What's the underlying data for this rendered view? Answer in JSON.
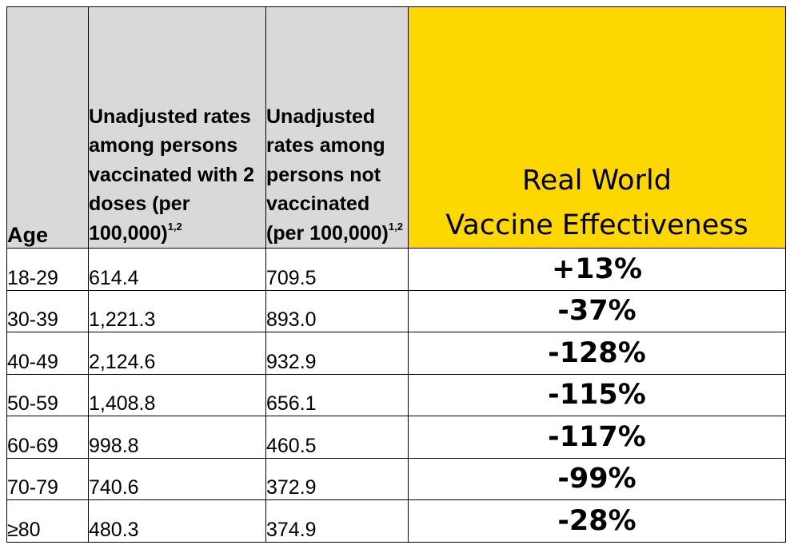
{
  "header": {
    "age": "Age",
    "vaccinated": "Unadjusted rates among persons vaccinated with 2 doses (per 100,000)",
    "vaccinated_sup": "1,2",
    "unvaccinated": "Unadjusted rates among persons not vaccinated (per 100,000)",
    "unvaccinated_sup": "1,2",
    "effectiveness_line1": "Real World",
    "effectiveness_line2": "Vaccine Effectiveness"
  },
  "rows": [
    {
      "age": "18-29",
      "vaccinated": "614.4",
      "unvaccinated": "709.5",
      "effectiveness": "+13%"
    },
    {
      "age": "30-39",
      "vaccinated": "1,221.3",
      "unvaccinated": "893.0",
      "effectiveness": "-37%"
    },
    {
      "age": "40-49",
      "vaccinated": "2,124.6",
      "unvaccinated": "932.9",
      "effectiveness": "-128%"
    },
    {
      "age": "50-59",
      "vaccinated": "1,408.8",
      "unvaccinated": "656.1",
      "effectiveness": "-115%"
    },
    {
      "age": "60-69",
      "vaccinated": "998.8",
      "unvaccinated": "460.5",
      "effectiveness": "-117%"
    },
    {
      "age": "70-79",
      "vaccinated": "740.6",
      "unvaccinated": "372.9",
      "effectiveness": "-99%"
    },
    {
      "age": "≥80",
      "vaccinated": "480.3",
      "unvaccinated": "374.9",
      "effectiveness": "-28%"
    }
  ],
  "colors": {
    "header_gray": "#d9d9d9",
    "highlight_yellow": "#fdd700",
    "border": "#000000"
  }
}
